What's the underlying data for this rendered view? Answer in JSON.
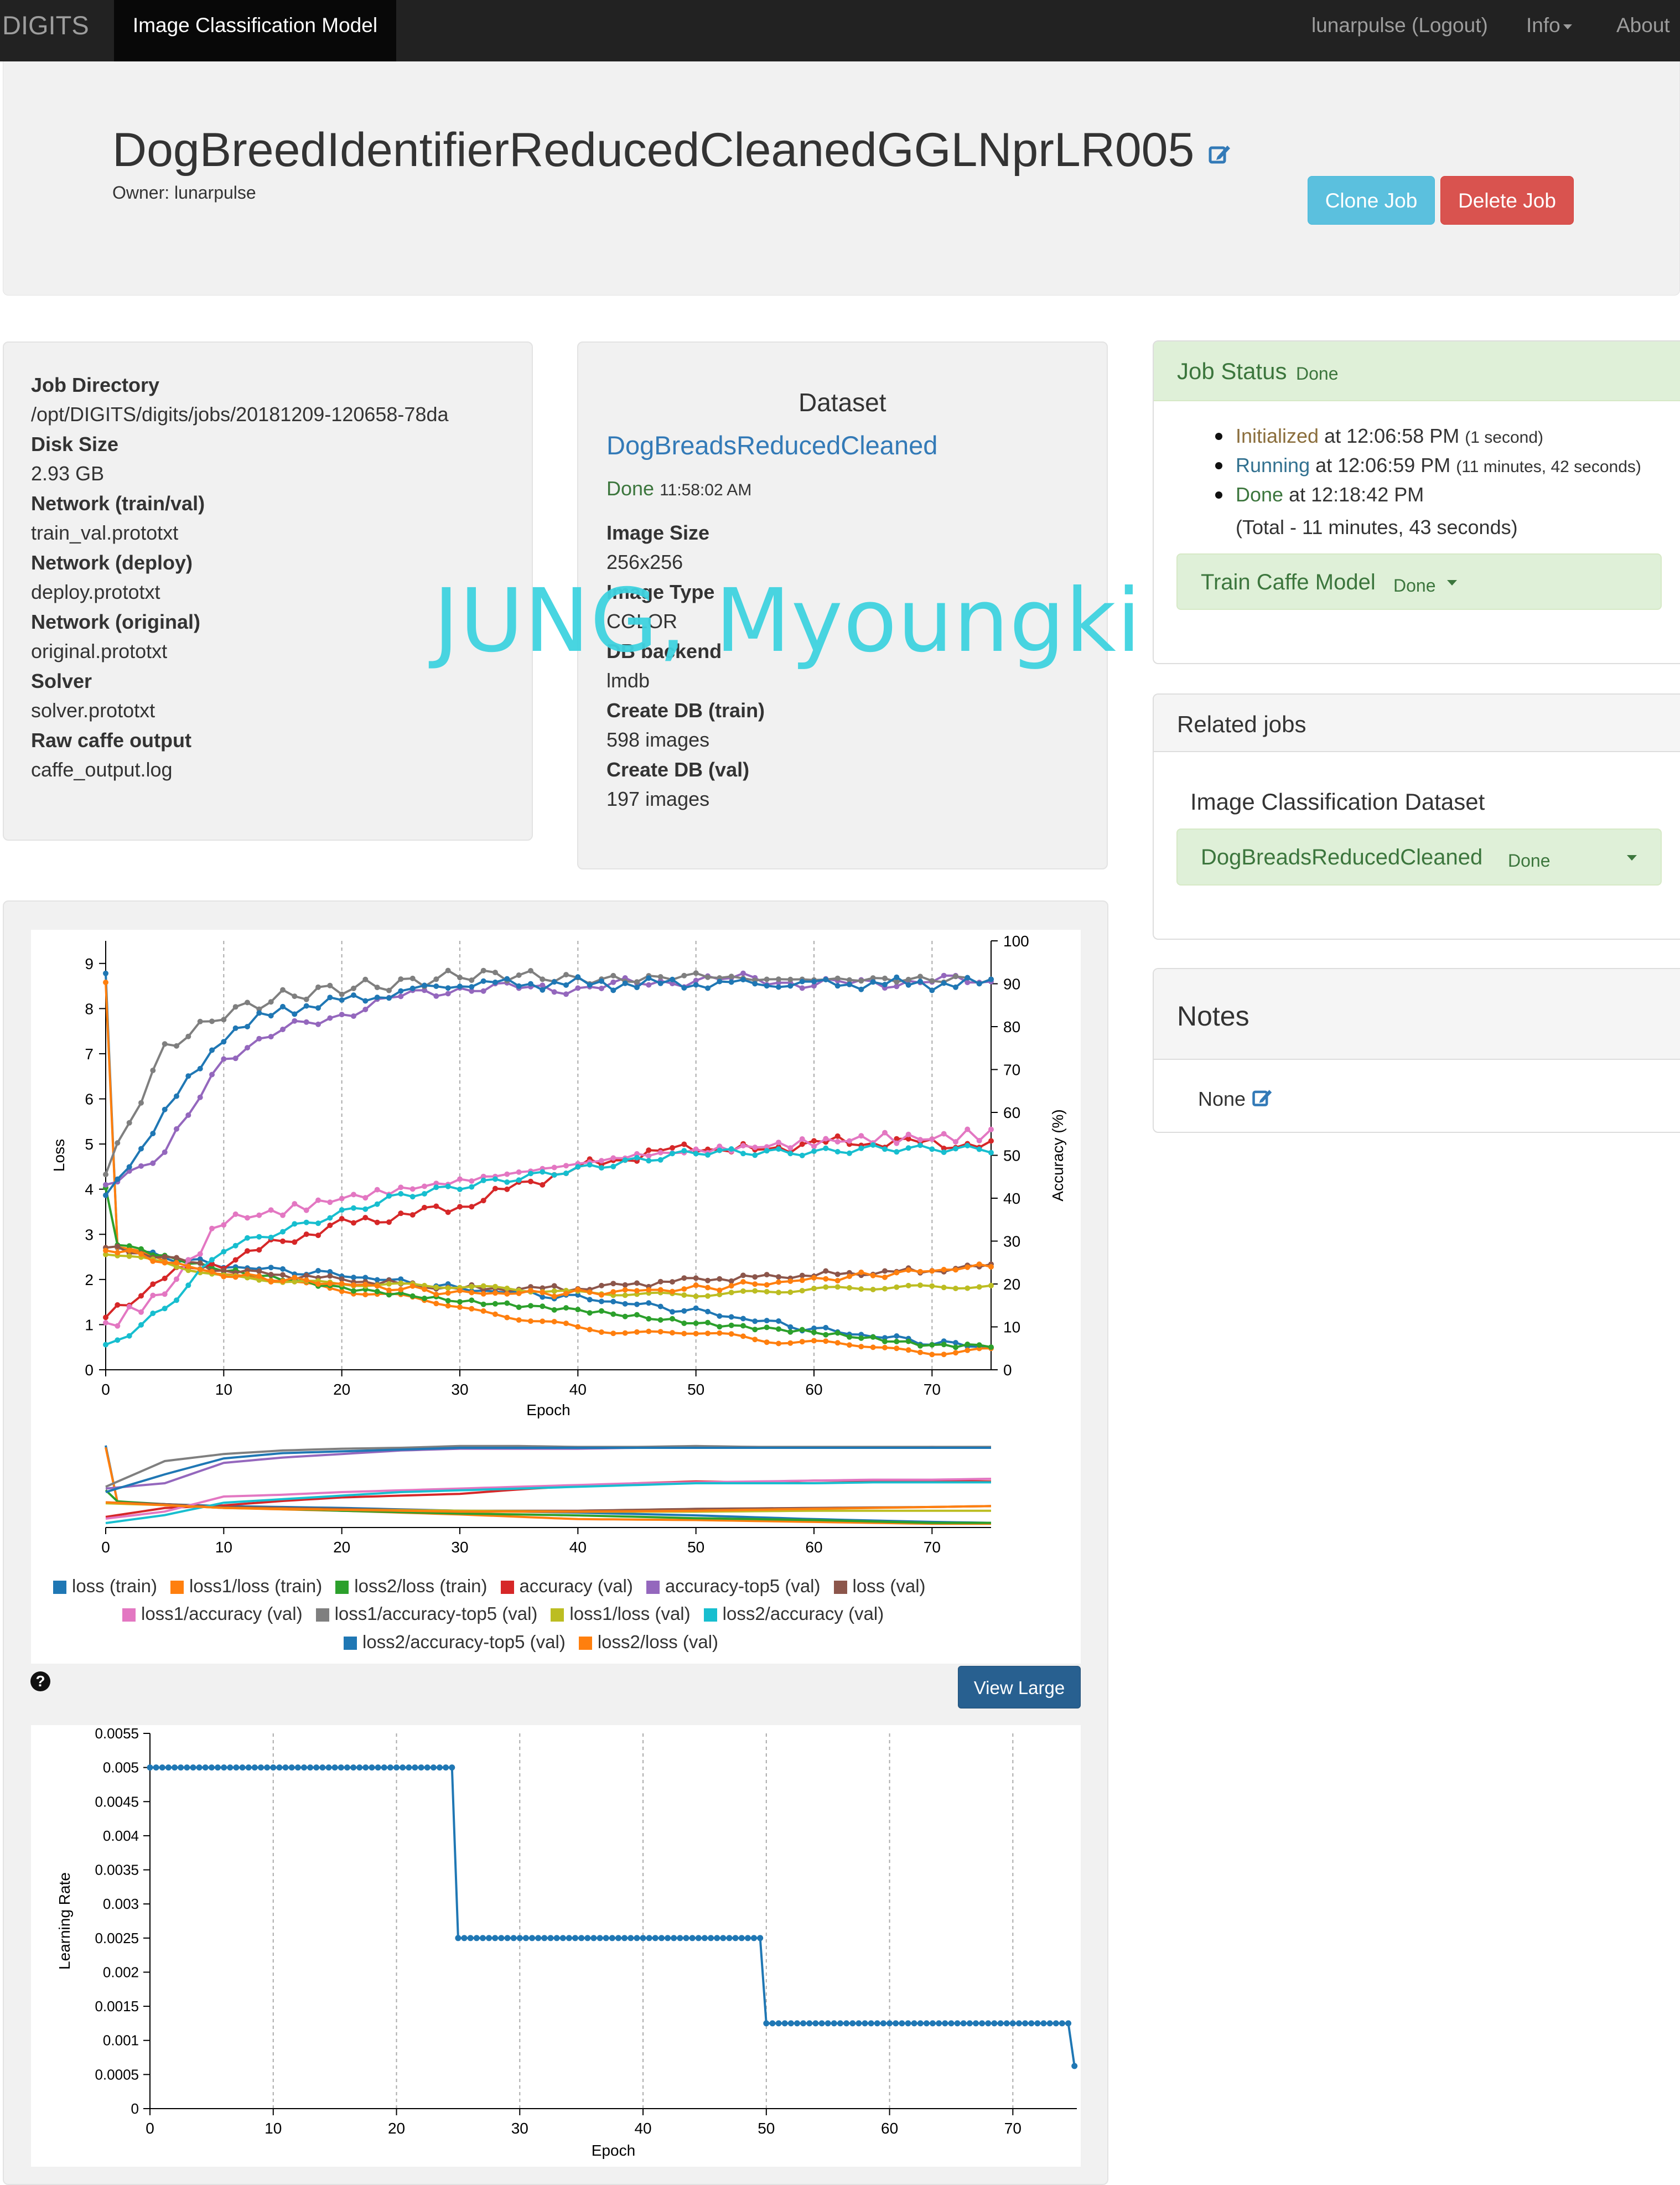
{
  "nav": {
    "brand": "DIGITS",
    "active_tab": "Image Classification Model",
    "user": "lunarpulse (Logout)",
    "info": "Info",
    "about": "About"
  },
  "job": {
    "name": "DogBreedIdentifierReducedCleanedGGLNprLR005",
    "owner": "Owner: lunarpulse",
    "clone_label": "Clone Job",
    "delete_label": "Delete Job"
  },
  "job_info": {
    "items": [
      {
        "label": "Job Directory",
        "value": "/opt/DIGITS/digits/jobs/20181209-120658-78da",
        "link": false
      },
      {
        "label": "Disk Size",
        "value": "2.93 GB",
        "link": false
      },
      {
        "label": "Network (train/val)",
        "value": "train_val.prototxt",
        "link": true
      },
      {
        "label": "Network (deploy)",
        "value": "deploy.prototxt",
        "link": true
      },
      {
        "label": "Network (original)",
        "value": "original.prototxt",
        "link": true
      },
      {
        "label": "Solver",
        "value": "solver.prototxt",
        "link": true
      },
      {
        "label": "Raw caffe output",
        "value": "caffe_output.log",
        "link": true
      }
    ]
  },
  "dataset": {
    "heading": "Dataset",
    "name": "DogBreadsReducedCleaned",
    "status": "Done",
    "status_time": "11:58:02 AM",
    "items": [
      {
        "label": "Image Size",
        "value": "256x256"
      },
      {
        "label": "Image Type",
        "value": "COLOR"
      },
      {
        "label": "DB backend",
        "value": "lmdb"
      },
      {
        "label": "Create DB (train)",
        "value": "598 images"
      },
      {
        "label": "Create DB (val)",
        "value": "197 images"
      }
    ]
  },
  "watermark": "JUNG, Myoungki",
  "job_status": {
    "heading": "Job Status",
    "heading_status": "Done",
    "events": [
      {
        "state": "Initialized",
        "at": " at 12:06:58 PM",
        "dur": "(1 second)",
        "color": "#8a6d3b"
      },
      {
        "state": "Running",
        "at": " at 12:06:59 PM",
        "dur": "(11 minutes, 42 seconds)",
        "color": "#31708f"
      },
      {
        "state": "Done",
        "at": " at 12:18:42 PM",
        "dur": "",
        "color": "#3c763d"
      }
    ],
    "total": "(Total - 11 minutes, 43 seconds)",
    "task_label": "Train Caffe Model",
    "task_status": "Done"
  },
  "related_jobs": {
    "heading": "Related jobs",
    "subheading": "Image Classification Dataset",
    "dataset_name": "DogBreadsReducedCleaned",
    "dataset_status": "Done"
  },
  "notes": {
    "heading": "Notes",
    "value": "None"
  },
  "view_large_label": "View Large",
  "help_glyph": "?",
  "colors": {
    "loss_train": "#1f77b4",
    "loss1_loss_train": "#ff7f0e",
    "loss2_loss_train": "#2ca02c",
    "accuracy_val": "#d62728",
    "accuracy_top5_val": "#9467bd",
    "loss_val": "#8c564b",
    "loss1_accuracy_val": "#e377c2",
    "loss1_accuracy_top5_val": "#7f7f7f",
    "loss1_loss_val": "#bcbd22",
    "loss2_accuracy_val": "#17becf",
    "loss2_accuracy_top5_val": "#1f77b4",
    "loss2_loss_val": "#ff7f0e"
  },
  "chart_data": [
    {
      "type": "line",
      "xlabel": "Epoch",
      "ylabel": "Loss",
      "y2label": "Accuracy (%)",
      "xlim": [
        0,
        75
      ],
      "ylim": [
        0,
        9.5
      ],
      "y2lim": [
        0,
        100
      ],
      "xticks": [
        0,
        10,
        20,
        30,
        40,
        50,
        60,
        70
      ],
      "yticks": [
        0,
        1,
        2,
        3,
        4,
        5,
        6,
        7,
        8,
        9
      ],
      "y2ticks": [
        0,
        10,
        20,
        30,
        40,
        50,
        60,
        70,
        80,
        90,
        100
      ],
      "legend_position": "bottom",
      "series": [
        {
          "name": "loss (train)",
          "axis": "loss",
          "color": "#1f77b4",
          "x": [
            0,
            1,
            5,
            10,
            20,
            30,
            40,
            50,
            60,
            70,
            75
          ],
          "values": [
            8.8,
            2.7,
            2.5,
            2.3,
            2.1,
            1.8,
            1.6,
            1.3,
            0.9,
            0.6,
            0.5
          ]
        },
        {
          "name": "loss1/loss (train)",
          "axis": "loss",
          "color": "#ff7f0e",
          "x": [
            0,
            1,
            5,
            10,
            20,
            30,
            40,
            50,
            60,
            70,
            75
          ],
          "values": [
            8.6,
            2.7,
            2.4,
            2.1,
            1.8,
            1.4,
            0.9,
            0.8,
            0.6,
            0.4,
            0.4
          ]
        },
        {
          "name": "loss2/loss (train)",
          "axis": "loss",
          "color": "#2ca02c",
          "x": [
            0,
            1,
            5,
            10,
            20,
            30,
            40,
            50,
            60,
            70,
            75
          ],
          "values": [
            4.0,
            2.8,
            2.5,
            2.2,
            1.8,
            1.5,
            1.3,
            1.0,
            0.8,
            0.5,
            0.5
          ]
        },
        {
          "name": "accuracy (val)",
          "axis": "accuracy",
          "color": "#d62728",
          "x": [
            0,
            5,
            10,
            15,
            20,
            25,
            30,
            35,
            40,
            45,
            50,
            55,
            60,
            65,
            70,
            75
          ],
          "values": [
            12,
            22,
            25,
            30,
            34,
            36,
            38,
            43,
            47,
            50,
            52,
            51,
            53,
            53,
            53,
            52
          ]
        },
        {
          "name": "accuracy-top5 (val)",
          "axis": "accuracy",
          "color": "#9467bd",
          "x": [
            0,
            5,
            10,
            15,
            20,
            25,
            30,
            35,
            40,
            45,
            50,
            55,
            60,
            65,
            70,
            75
          ],
          "values": [
            44,
            50,
            73,
            79,
            83,
            87,
            89,
            89,
            89,
            90,
            91,
            91,
            90,
            90,
            91,
            90
          ]
        },
        {
          "name": "loss (val)",
          "axis": "loss",
          "color": "#8c564b",
          "x": [
            0,
            5,
            10,
            20,
            30,
            40,
            50,
            60,
            70,
            75
          ],
          "values": [
            2.7,
            2.5,
            2.2,
            2.0,
            1.8,
            1.8,
            2.0,
            2.1,
            2.2,
            2.3
          ]
        },
        {
          "name": "loss1/accuracy (val)",
          "axis": "accuracy",
          "color": "#e377c2",
          "x": [
            0,
            5,
            10,
            15,
            20,
            25,
            30,
            35,
            40,
            45,
            50,
            55,
            60,
            65,
            70,
            75
          ],
          "values": [
            10,
            18,
            35,
            37,
            40,
            42,
            44,
            46,
            48,
            50,
            51,
            52,
            53,
            54,
            54,
            55
          ]
        },
        {
          "name": "loss1/accuracy-top5 (val)",
          "axis": "accuracy",
          "color": "#7f7f7f",
          "x": [
            0,
            5,
            10,
            15,
            20,
            25,
            30,
            35,
            40,
            45,
            50,
            55,
            60,
            65,
            70,
            75
          ],
          "values": [
            46,
            75,
            83,
            87,
            89,
            90,
            92,
            92,
            91,
            91,
            92,
            91,
            91,
            91,
            91,
            91
          ]
        },
        {
          "name": "loss1/loss (val)",
          "axis": "loss",
          "color": "#bcbd22",
          "x": [
            0,
            5,
            10,
            20,
            30,
            40,
            50,
            60,
            70,
            75
          ],
          "values": [
            2.6,
            2.4,
            2.1,
            1.9,
            1.8,
            1.7,
            1.7,
            1.8,
            1.8,
            1.8
          ]
        },
        {
          "name": "loss2/accuracy (val)",
          "axis": "accuracy",
          "color": "#17becf",
          "x": [
            0,
            5,
            10,
            15,
            20,
            25,
            30,
            35,
            40,
            45,
            50,
            55,
            60,
            65,
            70,
            75
          ],
          "values": [
            5,
            14,
            28,
            32,
            36,
            40,
            42,
            44,
            46,
            48,
            50,
            50,
            50,
            51,
            51,
            51
          ]
        },
        {
          "name": "loss2/accuracy-top5 (val)",
          "axis": "accuracy",
          "color": "#1f77b4",
          "x": [
            0,
            5,
            10,
            15,
            20,
            25,
            30,
            35,
            40,
            45,
            50,
            55,
            60,
            65,
            70,
            75
          ],
          "values": [
            40,
            60,
            78,
            84,
            86,
            88,
            90,
            90,
            90,
            90,
            90,
            90,
            90,
            90,
            90,
            90
          ]
        },
        {
          "name": "loss2/loss (val)",
          "axis": "loss",
          "color": "#ff7f0e",
          "x": [
            0,
            5,
            10,
            20,
            30,
            40,
            50,
            60,
            70,
            75
          ],
          "values": [
            2.7,
            2.4,
            2.1,
            1.9,
            1.7,
            1.7,
            1.8,
            2.0,
            2.2,
            2.3
          ]
        }
      ]
    },
    {
      "type": "line",
      "role": "overview",
      "xticks": [
        0,
        10,
        20,
        30,
        40,
        50,
        60,
        70
      ],
      "xlim": [
        0,
        75
      ]
    },
    {
      "type": "line",
      "xlabel": "Epoch",
      "ylabel": "Learning Rate",
      "xlim": [
        0,
        75
      ],
      "ylim": [
        0,
        0.0055
      ],
      "xticks": [
        0,
        10,
        20,
        30,
        40,
        50,
        60,
        70
      ],
      "yticks": [
        "0",
        "0.0005",
        "0.001",
        "0.0015",
        "0.002",
        "0.0025",
        "0.003",
        "0.0035",
        "0.004",
        "0.0045",
        "0.005",
        "0.0055"
      ],
      "series": [
        {
          "name": "Learning Rate",
          "color": "#1f77b4",
          "segments": [
            {
              "from": 0,
              "to": 24.5,
              "value": 0.005
            },
            {
              "from": 25,
              "to": 49.5,
              "value": 0.0025
            },
            {
              "from": 50,
              "to": 74.5,
              "value": 0.00125
            },
            {
              "from": 75,
              "to": 75,
              "value": 0.000625
            }
          ]
        }
      ]
    }
  ]
}
